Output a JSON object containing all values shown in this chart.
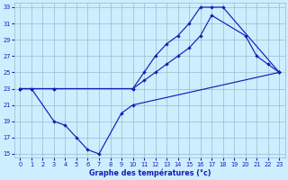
{
  "line1_x": [
    0,
    1,
    3,
    10,
    11,
    12,
    13,
    14,
    15,
    16,
    17,
    18,
    23
  ],
  "line1_y": [
    23,
    23,
    23,
    23,
    25,
    27,
    28.5,
    29.5,
    31,
    33,
    33,
    33,
    25
  ],
  "line2_x": [
    0,
    3,
    10,
    11,
    12,
    13,
    14,
    15,
    16,
    17,
    20,
    21,
    22,
    23
  ],
  "line2_y": [
    23,
    23,
    23,
    24,
    25,
    26,
    27,
    28,
    29.5,
    32,
    29.5,
    27,
    26,
    25
  ],
  "line3_x": [
    0,
    1,
    3,
    4,
    5,
    6,
    7,
    9,
    10,
    23
  ],
  "line3_y": [
    23,
    23,
    19,
    18.5,
    17,
    15.5,
    15,
    20,
    21,
    25
  ],
  "line_color": "#1a1ab8",
  "bg_color": "#cceeff",
  "grid_color": "#99bbcc",
  "xlabel": "Graphe des températures (°c)",
  "xlim_min": -0.5,
  "xlim_max": 23.5,
  "ylim_min": 14.5,
  "ylim_max": 33.5,
  "yticks": [
    15,
    17,
    19,
    21,
    23,
    25,
    27,
    29,
    31,
    33
  ],
  "xticks": [
    0,
    1,
    2,
    3,
    4,
    5,
    6,
    7,
    8,
    9,
    10,
    11,
    12,
    13,
    14,
    15,
    16,
    17,
    18,
    19,
    20,
    21,
    22,
    23
  ]
}
